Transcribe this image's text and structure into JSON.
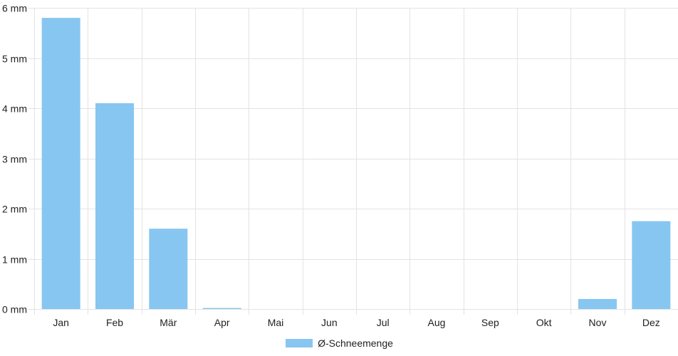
{
  "chart_data": {
    "type": "bar",
    "categories": [
      "Jan",
      "Feb",
      "Mär",
      "Apr",
      "Mai",
      "Jun",
      "Jul",
      "Aug",
      "Sep",
      "Okt",
      "Nov",
      "Dez"
    ],
    "series": [
      {
        "name": "Ø-Schneemenge",
        "values": [
          5.8,
          4.1,
          1.6,
          0.02,
          0,
          0,
          0,
          0,
          0,
          0,
          0.2,
          1.75
        ],
        "color": "#87c6f0"
      }
    ],
    "ylim": [
      0,
      6
    ],
    "yticks": [
      0,
      1,
      2,
      3,
      4,
      5,
      6
    ],
    "ytick_labels": [
      "0 mm",
      "1 mm",
      "2 mm",
      "3 mm",
      "4 mm",
      "5 mm",
      "6 mm"
    ],
    "grid": true,
    "grid_color": "#e3e3e3",
    "legend_position": "bottom"
  }
}
